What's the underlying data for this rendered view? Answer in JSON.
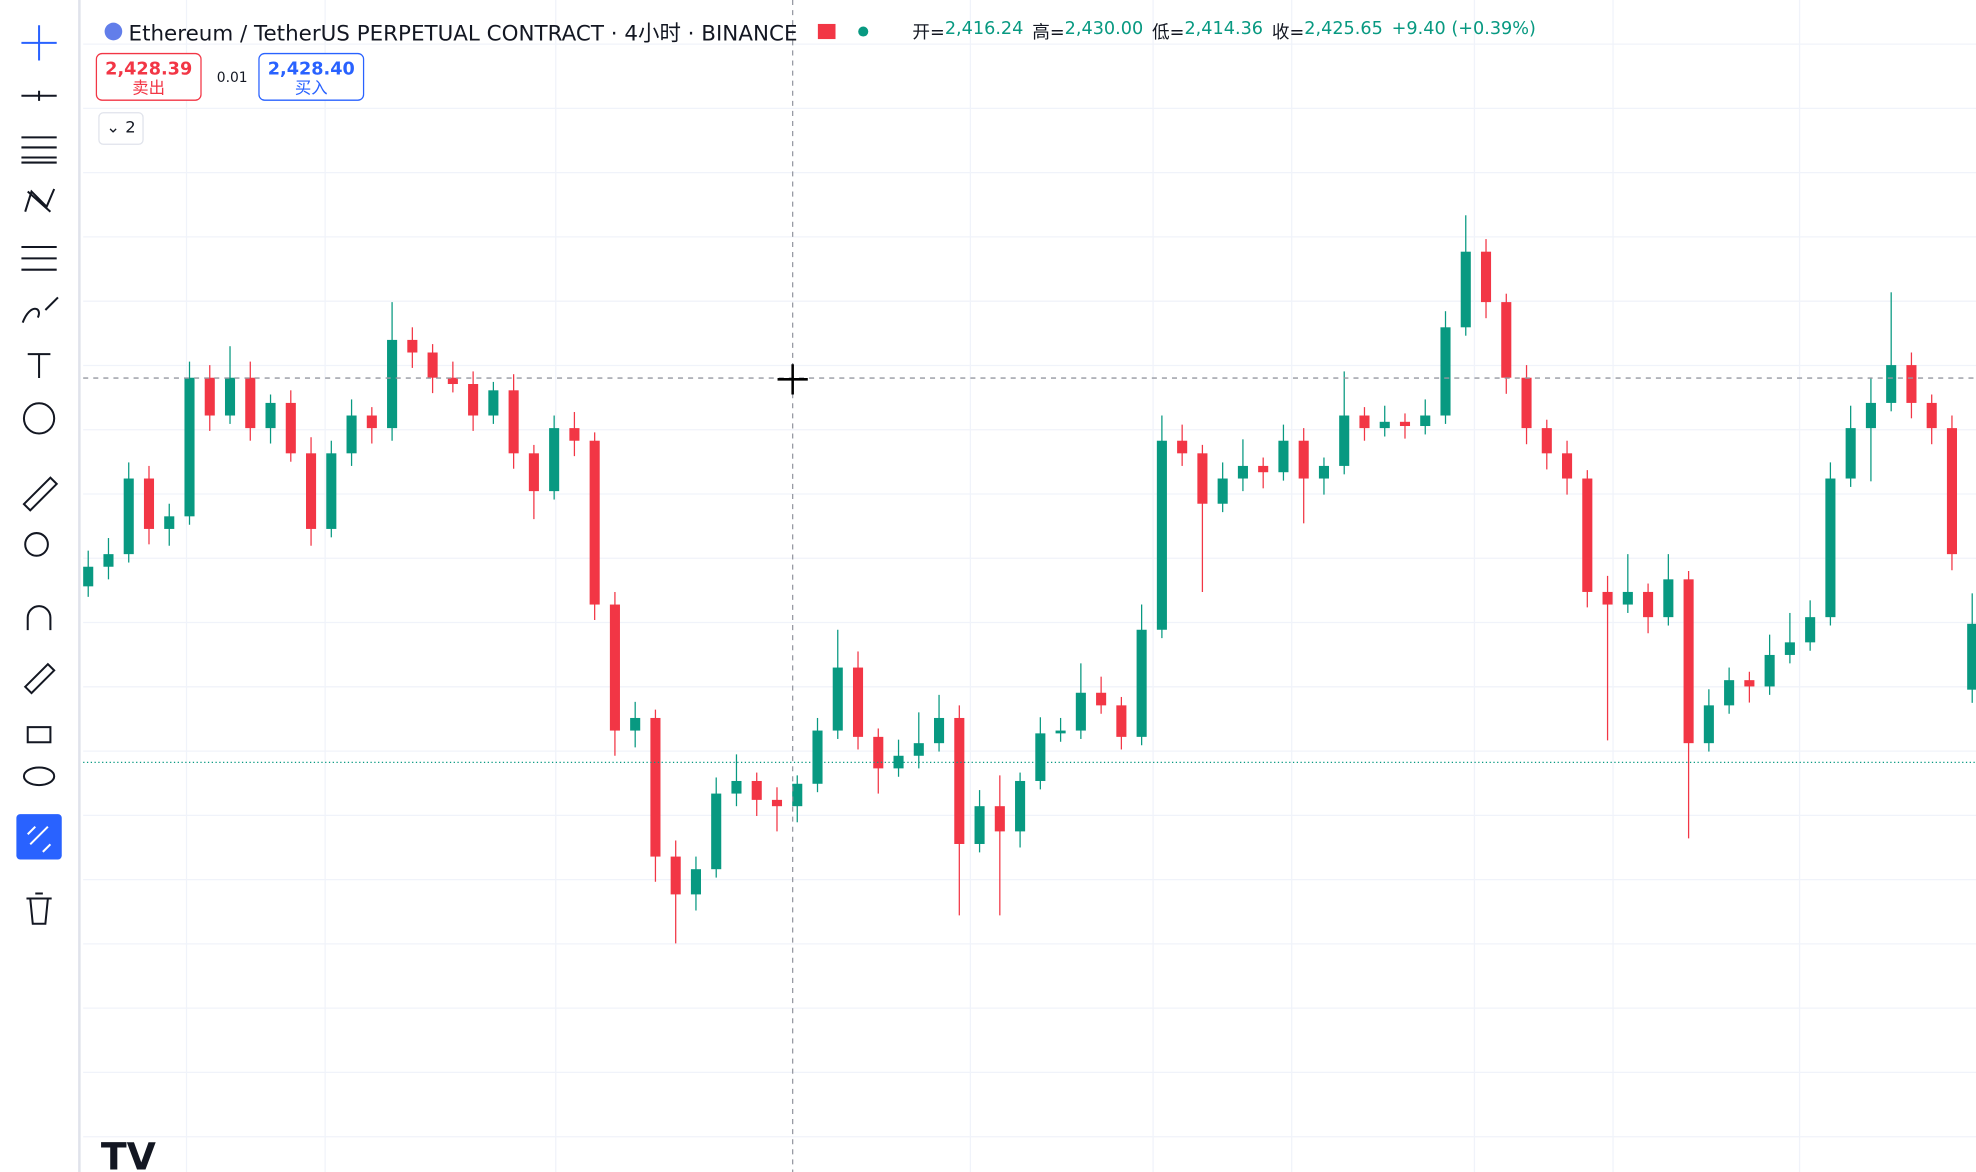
{
  "header": {
    "symbol": "Ethereum / TetherUS PERPETUAL CONTRACT · 4小时 · BINANCE",
    "ohlc": [
      {
        "label": "开=",
        "value": "2,416.24"
      },
      {
        "label": "高=",
        "value": "2,430.00"
      },
      {
        "label": "低=",
        "value": "2,414.36"
      },
      {
        "label": "收=",
        "value": "2,425.65"
      }
    ],
    "change": "+9.40 (+0.39%)"
  },
  "trade": {
    "sell_price": "2,428.39",
    "sell_label": "卖出",
    "quantity": "0.01",
    "buy_price": "2,428.40",
    "buy_label": "买入"
  },
  "indicators_count": "2",
  "chart_data": {
    "type": "candlestick",
    "ylim": [
      2347.35,
      2514.75
    ],
    "up_color": "#089981",
    "down_color": "#f23645",
    "candles": [
      [
        2431.0,
        2436.1,
        2429.5,
        2433.8
      ],
      [
        2433.8,
        2437.9,
        2432.0,
        2435.6
      ],
      [
        2435.6,
        2448.7,
        2434.4,
        2446.4
      ],
      [
        2446.4,
        2448.2,
        2437.0,
        2439.2
      ],
      [
        2439.2,
        2442.8,
        2436.8,
        2441.0
      ],
      [
        2441.0,
        2463.1,
        2439.8,
        2460.8
      ],
      [
        2460.8,
        2462.6,
        2453.2,
        2455.4
      ],
      [
        2455.4,
        2465.3,
        2454.2,
        2460.8
      ],
      [
        2460.8,
        2463.1,
        2451.8,
        2453.6
      ],
      [
        2453.6,
        2458.4,
        2451.4,
        2457.2
      ],
      [
        2457.2,
        2459.0,
        2448.8,
        2450.0
      ],
      [
        2450.0,
        2452.3,
        2436.8,
        2439.2
      ],
      [
        2439.2,
        2451.8,
        2438.0,
        2450.0
      ],
      [
        2450.0,
        2457.7,
        2448.2,
        2455.4
      ],
      [
        2455.4,
        2456.6,
        2451.4,
        2453.6
      ],
      [
        2453.6,
        2471.6,
        2451.8,
        2466.2
      ],
      [
        2466.2,
        2468.0,
        2462.2,
        2464.4
      ],
      [
        2464.4,
        2465.6,
        2458.6,
        2460.8
      ],
      [
        2460.8,
        2463.1,
        2458.7,
        2459.9
      ],
      [
        2459.9,
        2461.7,
        2453.2,
        2455.4
      ],
      [
        2455.4,
        2460.2,
        2454.2,
        2459.0
      ],
      [
        2459.0,
        2461.3,
        2447.8,
        2450.0
      ],
      [
        2450.0,
        2451.2,
        2440.6,
        2444.6
      ],
      [
        2444.6,
        2455.4,
        2443.4,
        2453.6
      ],
      [
        2453.6,
        2455.9,
        2449.6,
        2451.8
      ],
      [
        2451.8,
        2453.0,
        2426.2,
        2428.4
      ],
      [
        2428.4,
        2430.2,
        2406.8,
        2410.4
      ],
      [
        2410.4,
        2414.5,
        2408.0,
        2412.2
      ],
      [
        2412.2,
        2413.4,
        2388.8,
        2392.4
      ],
      [
        2392.4,
        2394.7,
        2380.0,
        2387.0
      ],
      [
        2387.0,
        2392.4,
        2384.7,
        2390.6
      ],
      [
        2390.6,
        2403.7,
        2389.4,
        2401.4
      ],
      [
        2401.4,
        2407.0,
        2399.6,
        2403.2
      ],
      [
        2403.2,
        2404.4,
        2398.2,
        2400.5
      ],
      [
        2400.5,
        2402.3,
        2396.0,
        2399.6
      ],
      [
        2399.6,
        2404.0,
        2397.3,
        2402.8
      ],
      [
        2402.8,
        2412.2,
        2401.6,
        2410.4
      ],
      [
        2410.4,
        2424.8,
        2409.2,
        2419.4
      ],
      [
        2419.4,
        2421.7,
        2407.7,
        2409.5
      ],
      [
        2409.5,
        2410.7,
        2401.4,
        2405.0
      ],
      [
        2405.0,
        2409.1,
        2403.8,
        2406.8
      ],
      [
        2406.8,
        2413.0,
        2405.0,
        2408.6
      ],
      [
        2408.6,
        2415.5,
        2407.4,
        2412.2
      ],
      [
        2412.2,
        2414.0,
        2384.0,
        2394.2
      ],
      [
        2394.2,
        2401.9,
        2393.0,
        2399.6
      ],
      [
        2399.6,
        2404.0,
        2384.0,
        2396.0
      ],
      [
        2396.0,
        2404.4,
        2393.7,
        2403.2
      ],
      [
        2403.2,
        2412.3,
        2402.0,
        2410.0
      ],
      [
        2410.0,
        2412.2,
        2408.8,
        2410.4
      ],
      [
        2410.4,
        2420.0,
        2409.2,
        2415.8
      ],
      [
        2415.8,
        2418.1,
        2412.8,
        2414.0
      ],
      [
        2414.0,
        2415.2,
        2407.7,
        2409.5
      ],
      [
        2409.5,
        2428.4,
        2408.3,
        2424.8
      ],
      [
        2424.8,
        2455.4,
        2423.6,
        2451.8
      ],
      [
        2451.8,
        2454.1,
        2448.2,
        2450.0
      ],
      [
        2450.0,
        2451.2,
        2430.2,
        2442.8
      ],
      [
        2442.8,
        2448.7,
        2441.6,
        2446.4
      ],
      [
        2446.4,
        2452.0,
        2444.6,
        2448.2
      ],
      [
        2448.2,
        2449.4,
        2445.0,
        2447.3
      ],
      [
        2447.3,
        2454.1,
        2446.1,
        2451.8
      ],
      [
        2451.8,
        2453.6,
        2440.0,
        2446.4
      ],
      [
        2446.4,
        2449.4,
        2444.1,
        2448.2
      ],
      [
        2448.2,
        2461.7,
        2447.0,
        2455.4
      ],
      [
        2455.4,
        2456.6,
        2451.8,
        2453.6
      ],
      [
        2453.6,
        2456.8,
        2452.4,
        2454.5
      ],
      [
        2454.5,
        2455.7,
        2452.1,
        2453.9
      ],
      [
        2453.9,
        2457.7,
        2452.7,
        2455.4
      ],
      [
        2455.4,
        2470.3,
        2454.2,
        2468.0
      ],
      [
        2468.0,
        2484.0,
        2466.8,
        2478.8
      ],
      [
        2478.8,
        2480.6,
        2469.3,
        2471.6
      ],
      [
        2471.6,
        2472.8,
        2458.5,
        2460.8
      ],
      [
        2460.8,
        2462.6,
        2451.3,
        2453.6
      ],
      [
        2453.6,
        2454.8,
        2447.7,
        2450.0
      ],
      [
        2450.0,
        2451.8,
        2444.1,
        2446.4
      ],
      [
        2446.4,
        2447.6,
        2428.0,
        2430.2
      ],
      [
        2430.2,
        2432.5,
        2409.0,
        2428.4
      ],
      [
        2428.4,
        2435.6,
        2427.2,
        2430.2
      ],
      [
        2430.2,
        2431.4,
        2424.3,
        2426.6
      ],
      [
        2426.6,
        2435.6,
        2425.4,
        2432.0
      ],
      [
        2432.0,
        2433.2,
        2395.0,
        2408.6
      ],
      [
        2408.6,
        2416.3,
        2407.4,
        2414.0
      ],
      [
        2414.0,
        2419.4,
        2412.8,
        2417.6
      ],
      [
        2417.6,
        2418.8,
        2414.4,
        2416.7
      ],
      [
        2416.7,
        2424.1,
        2415.5,
        2421.2
      ],
      [
        2421.2,
        2427.2,
        2420.0,
        2423.0
      ],
      [
        2423.0,
        2429.0,
        2421.8,
        2426.6
      ],
      [
        2426.6,
        2448.7,
        2425.4,
        2446.4
      ],
      [
        2446.4,
        2456.8,
        2445.2,
        2453.6
      ],
      [
        2453.6,
        2460.8,
        2446.0,
        2457.2
      ],
      [
        2457.2,
        2473.0,
        2456.0,
        2462.6
      ],
      [
        2462.6,
        2464.4,
        2455.0,
        2457.2
      ],
      [
        2457.2,
        2458.4,
        2451.3,
        2453.6
      ],
      [
        2453.6,
        2455.4,
        2433.3,
        2435.6
      ],
      [
        2416.24,
        2430.0,
        2414.36,
        2425.65
      ]
    ]
  }
}
